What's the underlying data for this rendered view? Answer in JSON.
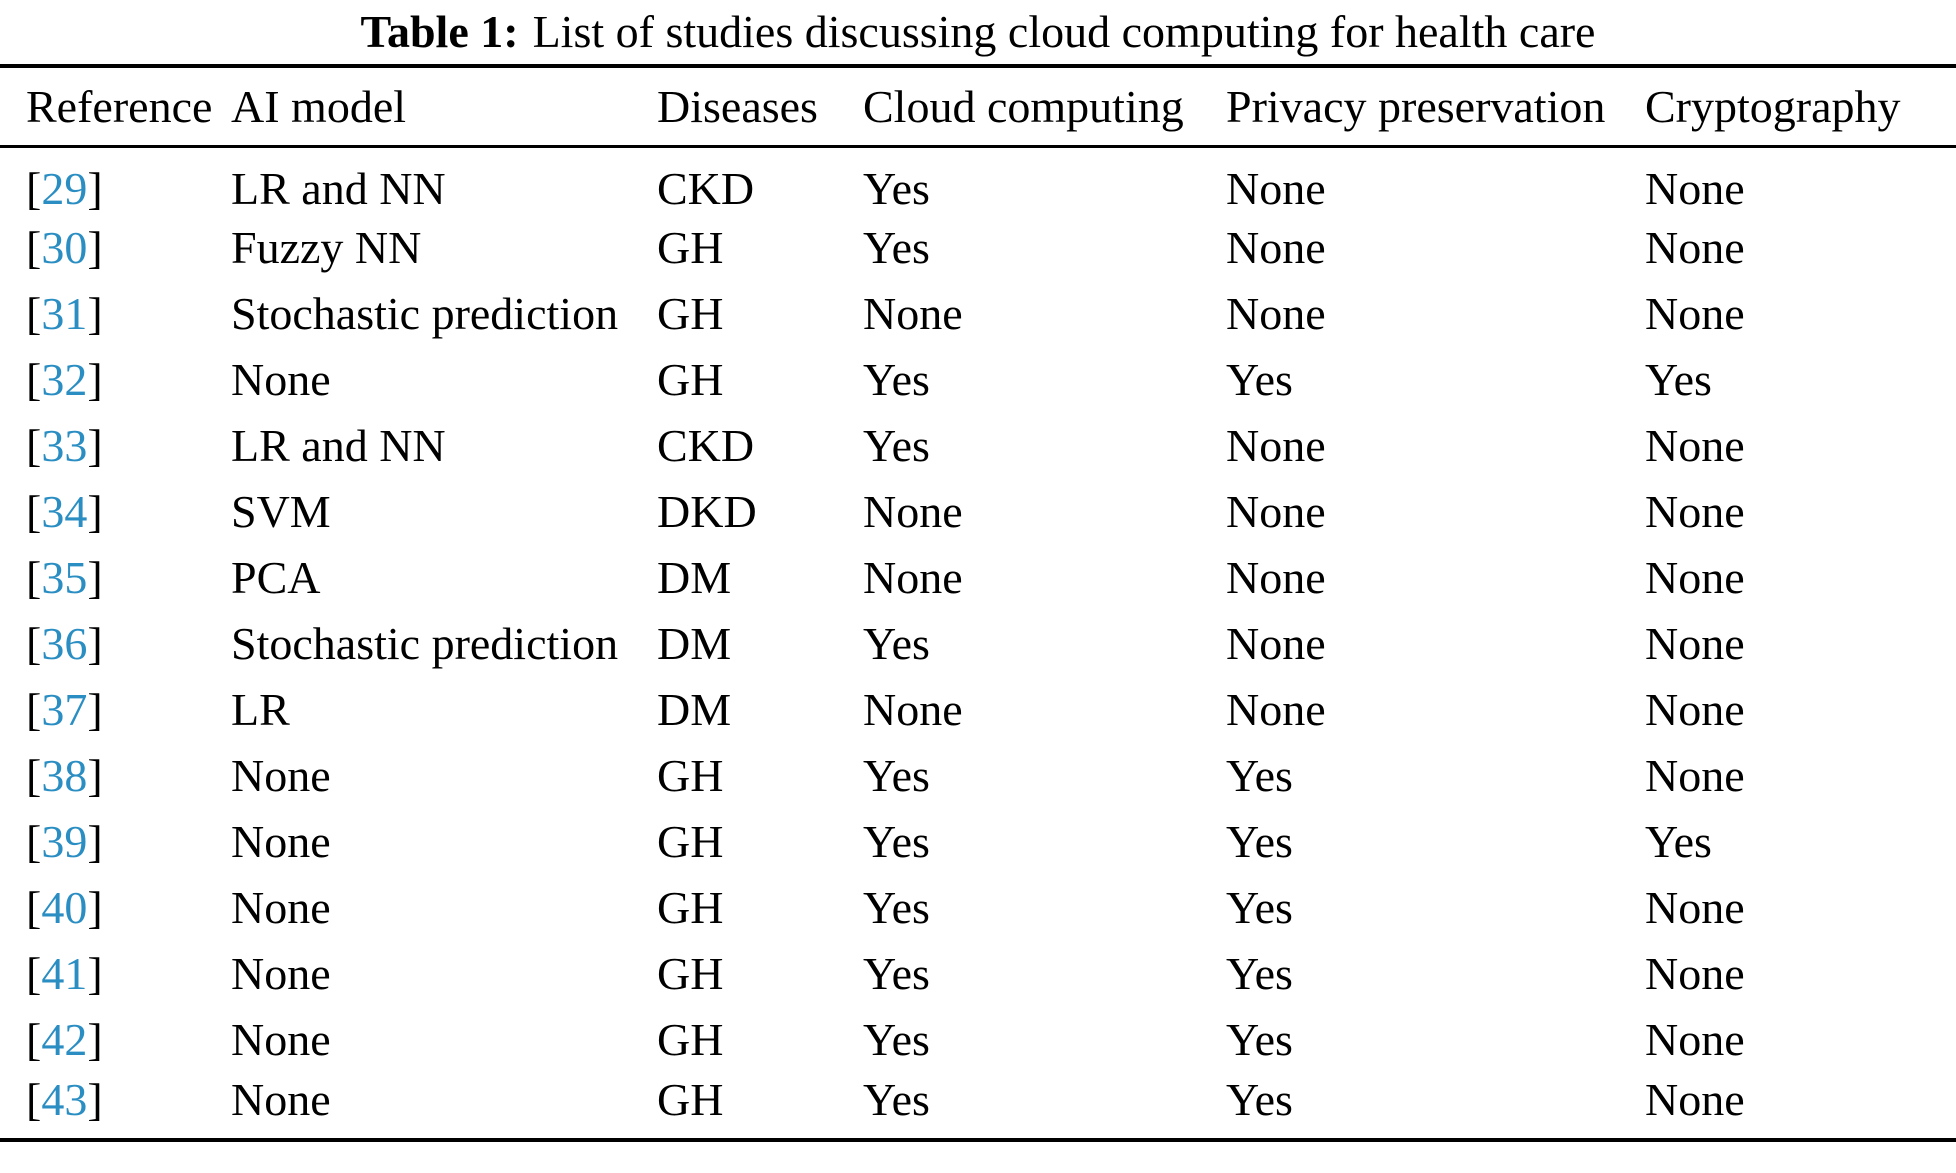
{
  "caption": {
    "label": "Table 1:",
    "text": "List of studies discussing cloud computing for health care"
  },
  "columns": [
    "Reference",
    "AI model",
    "Diseases",
    "Cloud computing",
    "Privacy preservation",
    "Cryptography"
  ],
  "citation": {
    "bracket_open": "[",
    "bracket_close": "]"
  },
  "colors": {
    "citation_link_blue": "#2B8EC3",
    "text_black": "#000000",
    "rule_black": "#000000",
    "page_background": "#FFFFFF"
  },
  "rows": [
    {
      "ref": "29",
      "ai_model": "LR and NN",
      "diseases": "CKD",
      "cloud_computing": "Yes",
      "privacy_preservation": "None",
      "cryptography": "None"
    },
    {
      "ref": "30",
      "ai_model": "Fuzzy NN",
      "diseases": "GH",
      "cloud_computing": "Yes",
      "privacy_preservation": "None",
      "cryptography": "None"
    },
    {
      "ref": "31",
      "ai_model": "Stochastic prediction",
      "diseases": "GH",
      "cloud_computing": "None",
      "privacy_preservation": "None",
      "cryptography": "None"
    },
    {
      "ref": "32",
      "ai_model": "None",
      "diseases": "GH",
      "cloud_computing": "Yes",
      "privacy_preservation": "Yes",
      "cryptography": "Yes"
    },
    {
      "ref": "33",
      "ai_model": "LR and NN",
      "diseases": "CKD",
      "cloud_computing": "Yes",
      "privacy_preservation": "None",
      "cryptography": "None"
    },
    {
      "ref": "34",
      "ai_model": "SVM",
      "diseases": "DKD",
      "cloud_computing": "None",
      "privacy_preservation": "None",
      "cryptography": "None"
    },
    {
      "ref": "35",
      "ai_model": "PCA",
      "diseases": "DM",
      "cloud_computing": "None",
      "privacy_preservation": "None",
      "cryptography": "None"
    },
    {
      "ref": "36",
      "ai_model": "Stochastic prediction",
      "diseases": "DM",
      "cloud_computing": "Yes",
      "privacy_preservation": "None",
      "cryptography": "None"
    },
    {
      "ref": "37",
      "ai_model": "LR",
      "diseases": "DM",
      "cloud_computing": "None",
      "privacy_preservation": "None",
      "cryptography": "None"
    },
    {
      "ref": "38",
      "ai_model": "None",
      "diseases": "GH",
      "cloud_computing": "Yes",
      "privacy_preservation": "Yes",
      "cryptography": "None"
    },
    {
      "ref": "39",
      "ai_model": "None",
      "diseases": "GH",
      "cloud_computing": "Yes",
      "privacy_preservation": "Yes",
      "cryptography": "Yes"
    },
    {
      "ref": "40",
      "ai_model": "None",
      "diseases": "GH",
      "cloud_computing": "Yes",
      "privacy_preservation": "Yes",
      "cryptography": "None"
    },
    {
      "ref": "41",
      "ai_model": "None",
      "diseases": "GH",
      "cloud_computing": "Yes",
      "privacy_preservation": "Yes",
      "cryptography": "None"
    },
    {
      "ref": "42",
      "ai_model": "None",
      "diseases": "GH",
      "cloud_computing": "Yes",
      "privacy_preservation": "Yes",
      "cryptography": "None"
    },
    {
      "ref": "43",
      "ai_model": "None",
      "diseases": "GH",
      "cloud_computing": "Yes",
      "privacy_preservation": "Yes",
      "cryptography": "None"
    }
  ]
}
